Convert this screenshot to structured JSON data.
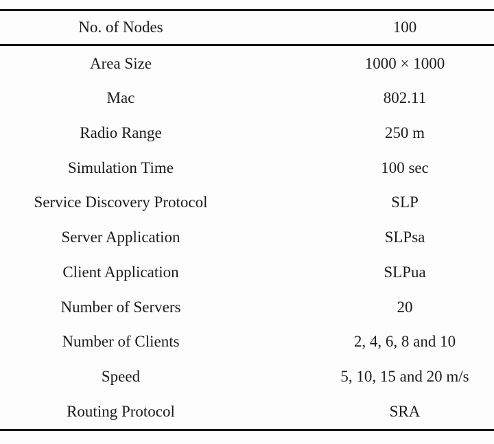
{
  "table": {
    "title_hidden": "",
    "rows": [
      {
        "label": "No. of Nodes",
        "value": "100"
      },
      {
        "label": "Area Size",
        "value": "1000 × 1000"
      },
      {
        "label": "Mac",
        "value": "802.11"
      },
      {
        "label": "Radio Range",
        "value": "250 m"
      },
      {
        "label": "Simulation Time",
        "value": "100 sec"
      },
      {
        "label": "Service Discovery Protocol",
        "value": "SLP"
      },
      {
        "label": "Server Application",
        "value": "SLPsa"
      },
      {
        "label": "Client Application",
        "value": "SLPua"
      },
      {
        "label": "Number of Servers",
        "value": "20"
      },
      {
        "label": "Number of Clients",
        "value": "2, 4, 6, 8 and 10"
      },
      {
        "label": "Speed",
        "value": "5, 10, 15 and 20 m/s"
      },
      {
        "label": "Routing Protocol",
        "value": "SRA"
      }
    ],
    "colors": {
      "text": "#1b1b1b",
      "rule": "#161616",
      "background": "#fdfdfd"
    }
  }
}
